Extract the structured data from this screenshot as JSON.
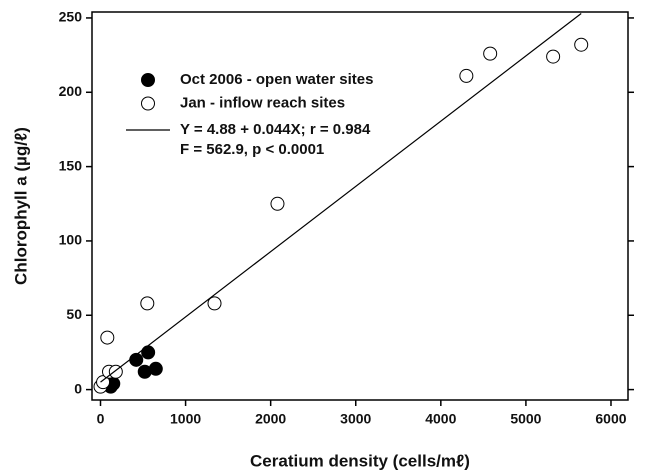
{
  "chart_data": {
    "type": "scatter",
    "xlabel": "Ceratium density (cells/mℓ)",
    "ylabel": "Chlorophyll a (µg/ℓ)",
    "xlim": [
      -100,
      6200
    ],
    "ylim": [
      -7,
      254
    ],
    "xticks": [
      0,
      1000,
      2000,
      3000,
      4000,
      5000,
      6000
    ],
    "yticks": [
      0,
      50,
      100,
      150,
      200,
      250
    ],
    "series": [
      {
        "name": "Oct 2006 - open water sites",
        "color": "#000000",
        "filled": true,
        "x": [
          100,
          120,
          130,
          150,
          420,
          520,
          560,
          650
        ],
        "values": [
          3,
          2,
          5,
          4,
          20,
          12,
          25,
          14
        ]
      },
      {
        "name": "Jan - inflow reach sites",
        "color": "#000000",
        "filled": false,
        "x": [
          0,
          30,
          80,
          100,
          180,
          550,
          1340,
          2080,
          4300,
          4580,
          5320,
          5650
        ],
        "values": [
          2,
          5,
          35,
          12,
          12,
          58,
          58,
          125,
          211,
          226,
          224,
          232
        ]
      },
      {
        "name": "Y = 4.88 + 0.044X; r = 0.984",
        "color": "#000000",
        "kind": "line",
        "x": [
          0,
          5650
        ],
        "values": [
          5,
          253
        ]
      }
    ],
    "annotation": "F = 562.9, p < 0.0001"
  }
}
